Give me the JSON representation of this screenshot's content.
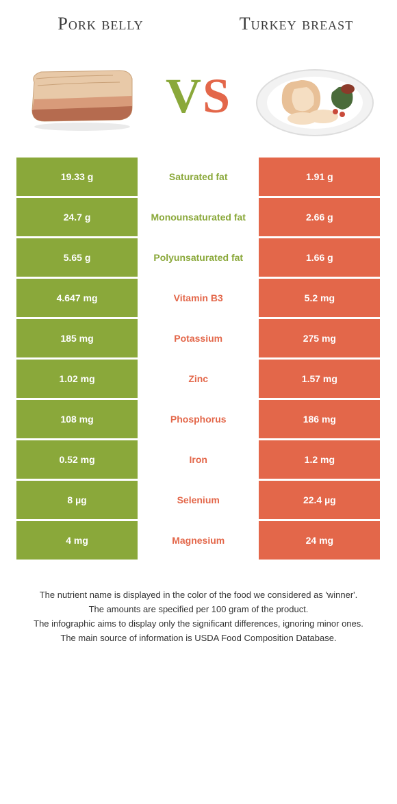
{
  "colors": {
    "green": "#8aa83a",
    "orange": "#e3674a",
    "green_text": "#8aa83a",
    "orange_text": "#e3674a",
    "white": "#ffffff"
  },
  "left_food": {
    "title": "Pork belly"
  },
  "right_food": {
    "title": "Turkey breast"
  },
  "vs": {
    "v": "V",
    "s": "S"
  },
  "rows": [
    {
      "left": "19.33 g",
      "label": "Saturated fat",
      "right": "1.91 g",
      "winner": "left"
    },
    {
      "left": "24.7 g",
      "label": "Monounsaturated fat",
      "right": "2.66 g",
      "winner": "left"
    },
    {
      "left": "5.65 g",
      "label": "Polyunsaturated fat",
      "right": "1.66 g",
      "winner": "left"
    },
    {
      "left": "4.647 mg",
      "label": "Vitamin B3",
      "right": "5.2 mg",
      "winner": "right"
    },
    {
      "left": "185 mg",
      "label": "Potassium",
      "right": "275 mg",
      "winner": "right"
    },
    {
      "left": "1.02 mg",
      "label": "Zinc",
      "right": "1.57 mg",
      "winner": "right"
    },
    {
      "left": "108 mg",
      "label": "Phosphorus",
      "right": "186 mg",
      "winner": "right"
    },
    {
      "left": "0.52 mg",
      "label": "Iron",
      "right": "1.2 mg",
      "winner": "right"
    },
    {
      "left": "8 µg",
      "label": "Selenium",
      "right": "22.4 µg",
      "winner": "right"
    },
    {
      "left": "4 mg",
      "label": "Magnesium",
      "right": "24 mg",
      "winner": "right"
    }
  ],
  "footnotes": [
    "The nutrient name is displayed in the color of the food we considered as 'winner'.",
    "The amounts are specified per 100 gram of the product.",
    "The infographic aims to display only the significant differences, ignoring minor ones.",
    "The main source of information is USDA Food Composition Database."
  ]
}
